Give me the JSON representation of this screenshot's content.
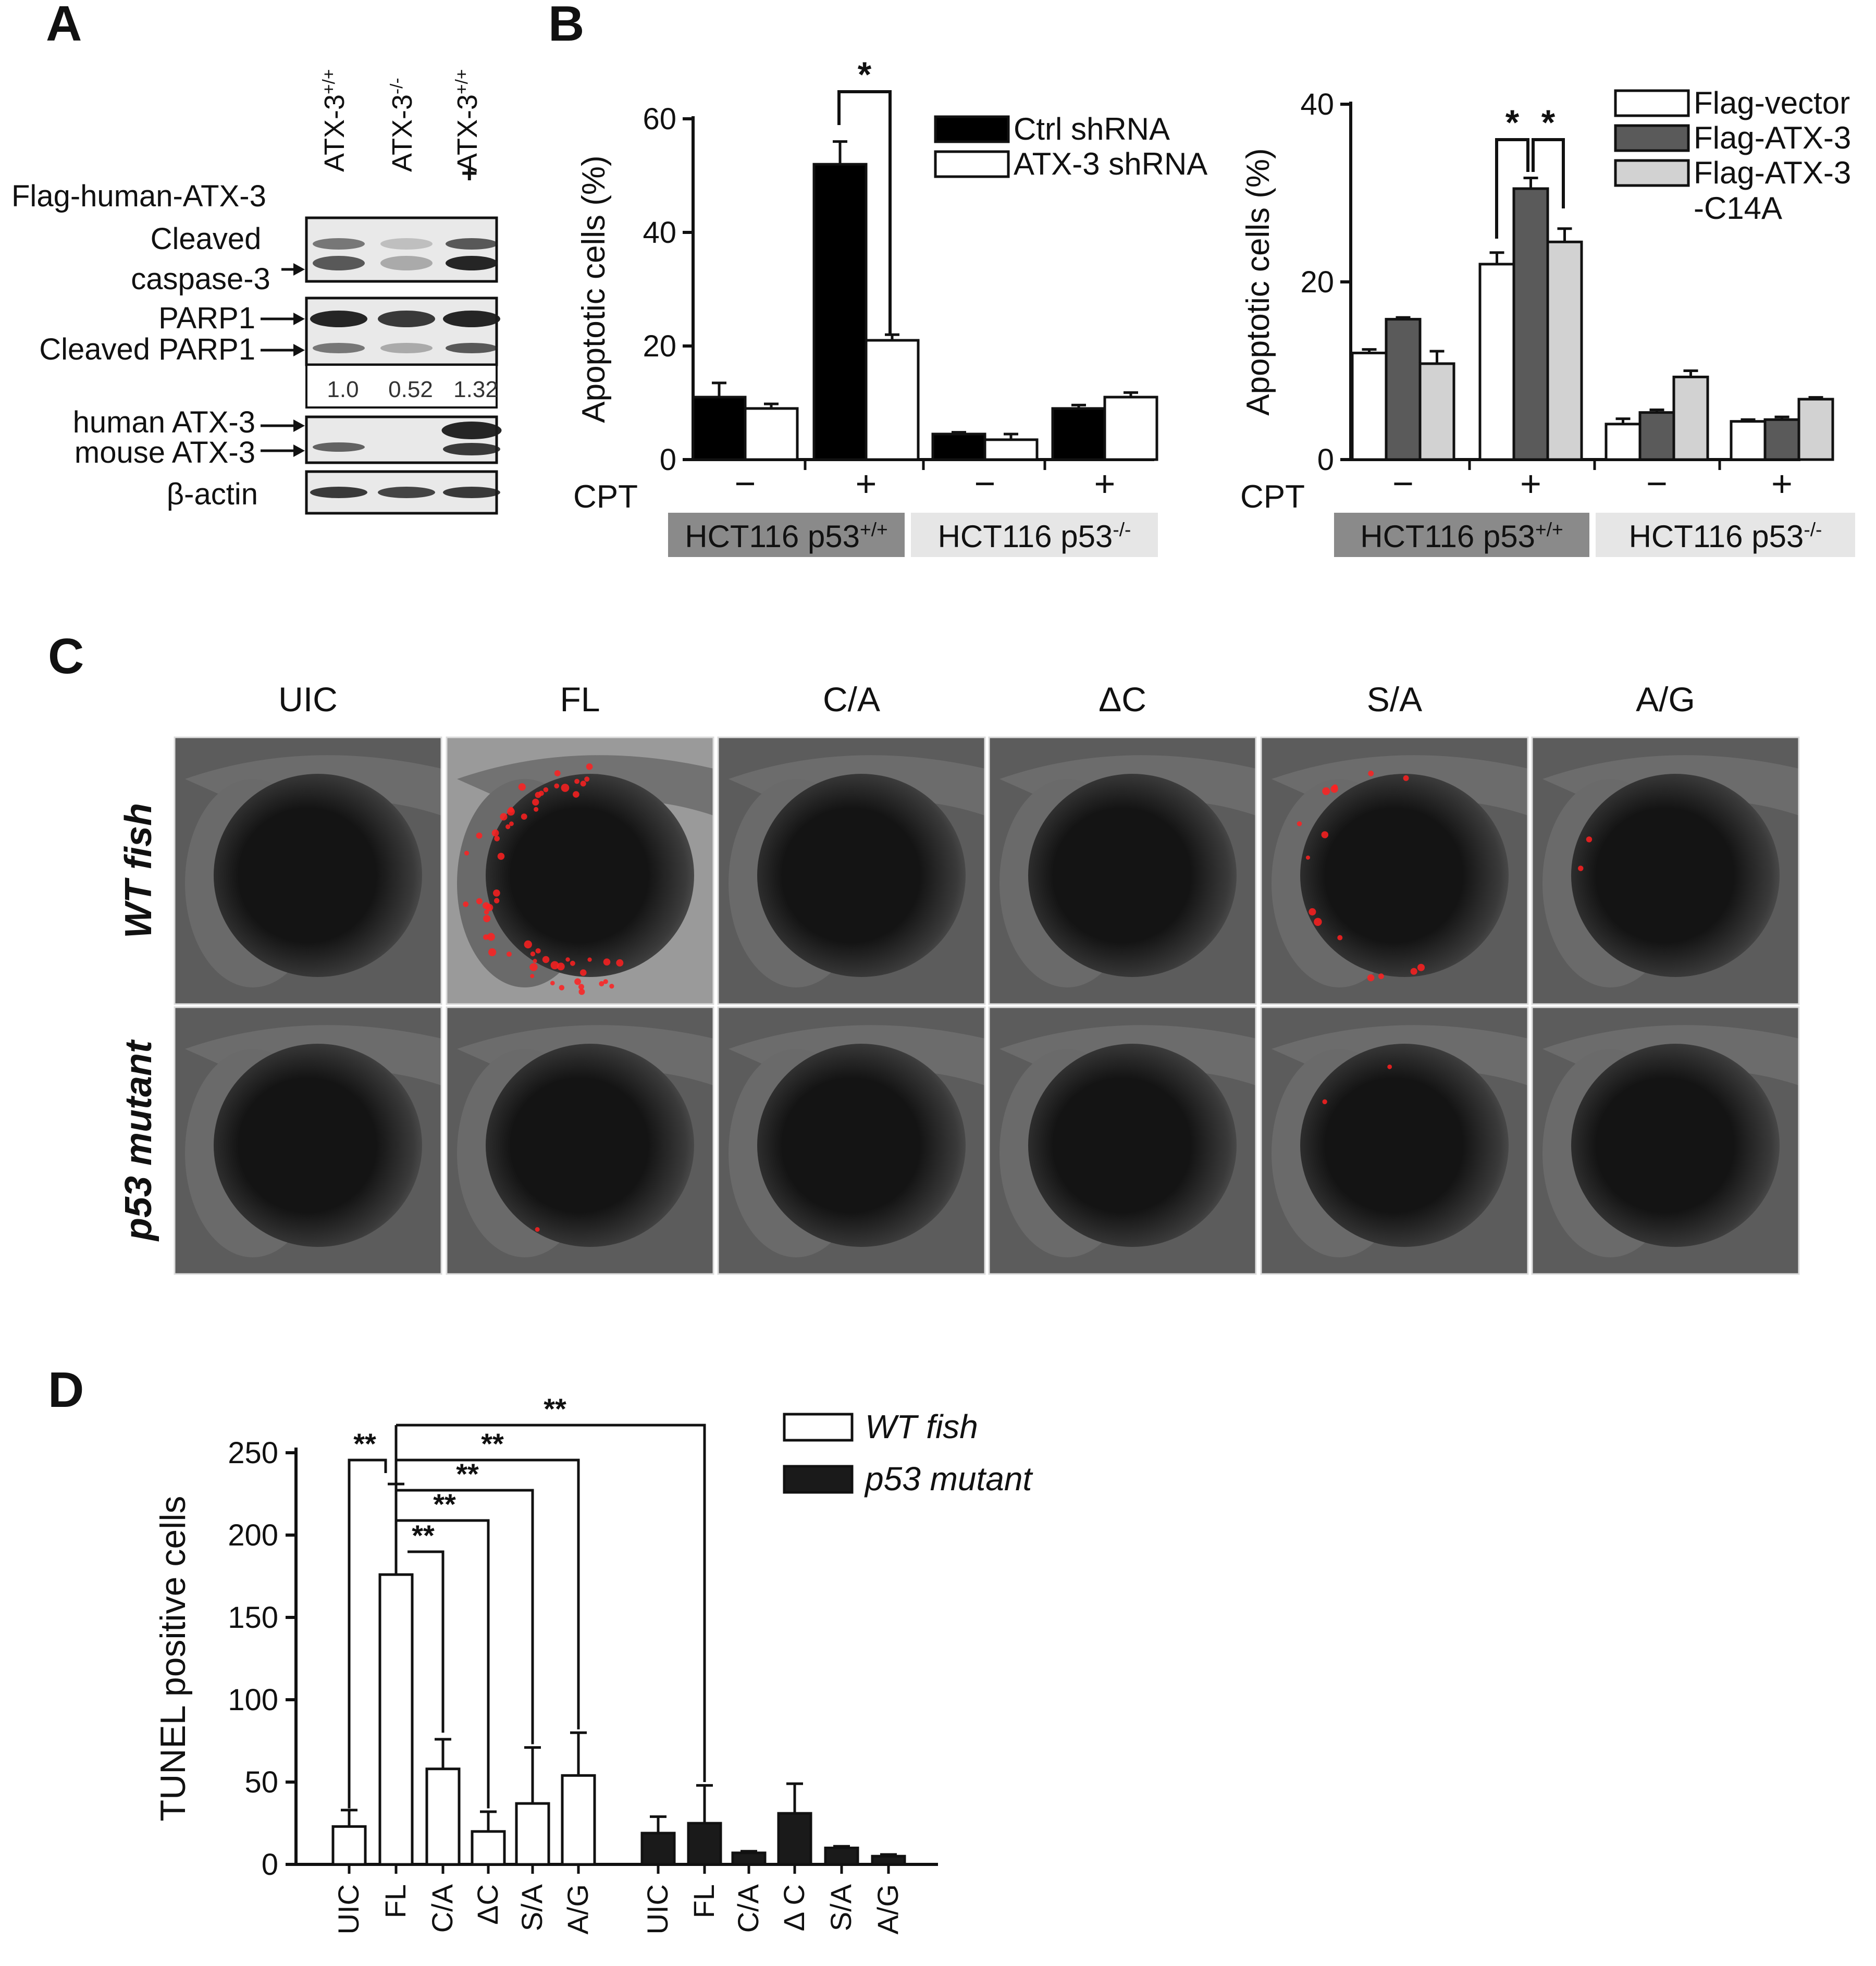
{
  "panel_letters": [
    "A",
    "B",
    "C",
    "D"
  ],
  "panel_a": {
    "lanes": [
      {
        "base": "ATX-3",
        "sup": "+/+"
      },
      {
        "base": "ATX-3",
        "sup": "-/-"
      },
      {
        "base": "ATX-3",
        "sup": "+/+"
      }
    ],
    "flag_label": "Flag-human-ATX-3",
    "flag_marks": [
      "",
      "",
      "+"
    ],
    "blots": [
      {
        "labels": [
          "Cleaved",
          "caspase-3"
        ]
      },
      {
        "labels": [
          "PARP1",
          "Cleaved PARP1"
        ]
      },
      {
        "labels": [
          "human ATX-3",
          "mouse ATX-3"
        ]
      },
      {
        "labels": [
          "β-actin"
        ]
      }
    ],
    "quant": [
      "1.0",
      "0.52",
      "1.32"
    ]
  },
  "cpt_label": "CPT",
  "cpt_signs": [
    "−",
    "+",
    "−",
    "+"
  ],
  "cell_lines": [
    {
      "base": "HCT116 p53",
      "sup": "+/+",
      "color": "#8a8a8a"
    },
    {
      "base": "HCT116 p53",
      "sup": "-/-",
      "color": "#e6e6e6"
    }
  ],
  "panel_c": {
    "columns": [
      "UIC",
      "FL",
      "C/A",
      "ΔC",
      "S/A",
      "A/G"
    ],
    "rows": [
      "WT fish",
      "p53 mutant"
    ],
    "red_signal": [
      [
        0,
        1,
        0,
        0,
        0.25,
        0.03
      ],
      [
        0,
        0.02,
        0,
        0,
        0.04,
        0
      ]
    ]
  },
  "chart_data": [
    {
      "type": "bar",
      "panel": "B-left",
      "categories": [
        "CPT − / HCT116 p53+/+",
        "CPT + / HCT116 p53+/+",
        "CPT − / HCT116 p53-/-",
        "CPT + / HCT116 p53-/-"
      ],
      "series": [
        {
          "name": "Ctrl shRNA",
          "color": "#000000",
          "values": [
            11,
            52,
            4.5,
            9
          ],
          "errors": [
            2.5,
            4,
            0.3,
            0.6
          ]
        },
        {
          "name": "ATX-3 shRNA",
          "color": "#ffffff",
          "values": [
            9,
            21,
            3.5,
            11
          ],
          "errors": [
            0.8,
            1,
            1,
            0.8
          ]
        }
      ],
      "ylabel": "Apoptotic cells (%)",
      "ylim": [
        0,
        60
      ],
      "yticks": [
        0,
        20,
        40,
        60
      ],
      "annotations": [
        {
          "text": "*"
        }
      ],
      "legend": "top-right",
      "grid": false
    },
    {
      "type": "bar",
      "panel": "B-right",
      "categories": [
        "CPT − / HCT116 p53+/+",
        "CPT + / HCT116 p53+/+",
        "CPT − / HCT116 p53-/-",
        "CPT + / HCT116 p53-/-"
      ],
      "series": [
        {
          "name": "Flag-vector",
          "color": "#ffffff",
          "values": [
            12,
            22,
            4,
            4.3
          ],
          "errors": [
            0.4,
            1.3,
            0.6,
            0.2
          ]
        },
        {
          "name": "Flag-ATX-3",
          "color": "#5a5a5a",
          "values": [
            15.8,
            30.5,
            5.3,
            4.5
          ],
          "errors": [
            0.2,
            1.2,
            0.3,
            0.3
          ]
        },
        {
          "name": "Flag-ATX-3\n-C14A",
          "color": "#d2d2d2",
          "values": [
            10.8,
            24.5,
            9.3,
            6.8
          ],
          "errors": [
            1.4,
            1.5,
            0.7,
            0.2
          ]
        }
      ],
      "ylabel": "Apoptotic cells (%)",
      "ylim": [
        0,
        40
      ],
      "yticks": [
        0,
        20,
        40
      ],
      "annotations": [
        {
          "text": "*"
        },
        {
          "text": "*"
        }
      ],
      "legend": "top-right",
      "grid": false
    },
    {
      "type": "bar",
      "panel": "D",
      "categories": [
        "UIC",
        "FL",
        "C/A",
        "ΔC",
        "S/A",
        "A/G"
      ],
      "category_labels_p53": [
        "UIC",
        "FL",
        "C/A",
        "Δ C",
        "S/A",
        "A/G"
      ],
      "series": [
        {
          "name": "WT fish",
          "color": "#ffffff",
          "values": [
            23,
            176,
            58,
            20,
            37,
            54
          ],
          "errors": [
            10,
            55,
            18,
            12,
            34,
            26
          ]
        },
        {
          "name": "p53 mutant",
          "color": "#1a1a1a",
          "values": [
            19,
            25,
            7,
            31,
            10,
            5
          ],
          "errors": [
            10,
            23,
            1,
            18,
            1,
            1
          ]
        }
      ],
      "ylabel": "TUNEL positive cells",
      "ylim": [
        0,
        250
      ],
      "yticks": [
        0,
        50,
        100,
        150,
        200,
        250
      ],
      "annotations": [
        {
          "text": "**"
        },
        {
          "text": "**"
        },
        {
          "text": "**"
        },
        {
          "text": "**"
        },
        {
          "text": "**"
        },
        {
          "text": "**"
        }
      ],
      "legend": "top-right",
      "grid": false
    }
  ]
}
